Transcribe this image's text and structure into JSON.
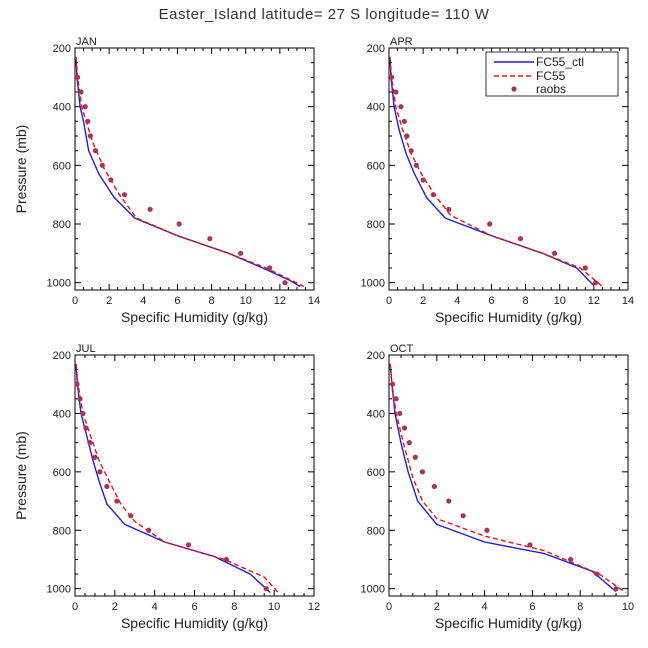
{
  "figure": {
    "title": "Easter_Island  latitude= 27 S longitude= 110 W"
  },
  "legend": {
    "ctl_label": "FC55_ctl",
    "fc55_label": "FC55",
    "raobs_label": "raobs"
  },
  "colors": {
    "ctl": "#1f1fd6",
    "fc55": "#e01818",
    "raobs": "#b0305a"
  },
  "chart_data": [
    {
      "type": "line",
      "panel": "JAN",
      "xlabel": "Specific Humidity (g/kg)",
      "ylabel": "Pressure (mb)",
      "xlim": [
        0,
        14
      ],
      "ylim": [
        1025,
        200
      ],
      "xticks": [
        0,
        2,
        4,
        6,
        8,
        10,
        12,
        14
      ],
      "yticks": [
        200,
        400,
        600,
        800,
        1000
      ],
      "series": [
        {
          "name": "FC55_ctl",
          "style": "solid",
          "x": [
            0.05,
            0.12,
            0.3,
            0.5,
            0.8,
            1.4,
            2.3,
            3.5,
            6.0,
            9.0,
            11.0,
            12.5,
            13.2
          ],
          "y": [
            230,
            300,
            400,
            450,
            550,
            630,
            710,
            780,
            840,
            900,
            950,
            990,
            1013
          ]
        },
        {
          "name": "FC55",
          "style": "dashed",
          "x": [
            0.05,
            0.15,
            0.4,
            0.7,
            1.1,
            1.7,
            2.6,
            3.6,
            6.0,
            9.0,
            11.2,
            12.6,
            13.4
          ],
          "y": [
            230,
            300,
            400,
            460,
            530,
            610,
            700,
            780,
            840,
            900,
            950,
            990,
            1013
          ]
        },
        {
          "name": "raobs",
          "style": "markers",
          "x": [
            0.15,
            0.35,
            0.6,
            0.75,
            0.9,
            1.2,
            1.6,
            2.1,
            2.9,
            4.4,
            6.1,
            7.9,
            9.7,
            11.4,
            12.3
          ],
          "y": [
            300,
            350,
            400,
            450,
            500,
            550,
            600,
            650,
            700,
            750,
            800,
            850,
            900,
            950,
            1000
          ]
        }
      ]
    },
    {
      "type": "line",
      "panel": "APR",
      "xlabel": "Specific Humidity (g/kg)",
      "ylabel": "",
      "xlim": [
        0,
        14
      ],
      "ylim": [
        1025,
        200
      ],
      "xticks": [
        0,
        2,
        4,
        6,
        8,
        10,
        12,
        14
      ],
      "yticks": [
        200,
        400,
        600,
        800,
        1000
      ],
      "series": [
        {
          "name": "FC55_ctl",
          "style": "solid",
          "x": [
            0.05,
            0.12,
            0.3,
            0.6,
            1.0,
            1.5,
            2.2,
            3.3,
            6.0,
            9.0,
            11.0,
            12.0
          ],
          "y": [
            230,
            300,
            400,
            480,
            560,
            630,
            710,
            780,
            840,
            900,
            950,
            1010
          ]
        },
        {
          "name": "FC55",
          "style": "dashed",
          "x": [
            0.05,
            0.15,
            0.4,
            0.8,
            1.3,
            2.0,
            2.8,
            3.6,
            6.0,
            9.0,
            11.2,
            12.5
          ],
          "y": [
            230,
            300,
            400,
            480,
            560,
            640,
            710,
            770,
            840,
            900,
            950,
            1013
          ]
        },
        {
          "name": "raobs",
          "style": "markers",
          "x": [
            0.15,
            0.4,
            0.7,
            0.9,
            1.05,
            1.3,
            1.6,
            2.0,
            2.6,
            3.5,
            5.9,
            7.7,
            9.7,
            11.5,
            12.1
          ],
          "y": [
            300,
            350,
            400,
            450,
            500,
            550,
            600,
            650,
            700,
            750,
            800,
            850,
            900,
            950,
            1000
          ]
        }
      ]
    },
    {
      "type": "line",
      "panel": "JUL",
      "xlabel": "Specific Humidity (g/kg)",
      "ylabel": "Pressure (mb)",
      "xlim": [
        0,
        12
      ],
      "ylim": [
        1025,
        200
      ],
      "xticks": [
        0,
        2,
        4,
        6,
        8,
        10,
        12
      ],
      "yticks": [
        200,
        400,
        600,
        800,
        1000
      ],
      "series": [
        {
          "name": "FC55_ctl",
          "style": "solid",
          "x": [
            0.05,
            0.12,
            0.3,
            0.6,
            0.9,
            1.2,
            1.6,
            2.5,
            4.5,
            7.0,
            8.8,
            9.8
          ],
          "y": [
            230,
            300,
            400,
            480,
            560,
            630,
            710,
            780,
            840,
            890,
            950,
            1013
          ]
        },
        {
          "name": "FC55",
          "style": "dashed",
          "x": [
            0.05,
            0.15,
            0.4,
            0.8,
            1.2,
            1.7,
            2.3,
            3.0,
            4.5,
            7.5,
            9.5,
            10.2
          ],
          "y": [
            230,
            300,
            400,
            480,
            560,
            630,
            710,
            770,
            840,
            900,
            960,
            1013
          ]
        },
        {
          "name": "raobs",
          "style": "markers",
          "x": [
            0.1,
            0.25,
            0.4,
            0.55,
            0.75,
            1.0,
            1.25,
            1.6,
            2.1,
            2.8,
            3.7,
            5.7,
            7.6,
            9.6
          ],
          "y": [
            300,
            350,
            400,
            450,
            500,
            550,
            600,
            650,
            700,
            750,
            800,
            850,
            900,
            1000
          ]
        }
      ]
    },
    {
      "type": "line",
      "panel": "OCT",
      "xlabel": "Specific Humidity (g/kg)",
      "ylabel": "",
      "xlim": [
        0,
        10
      ],
      "ylim": [
        1025,
        200
      ],
      "xticks": [
        0,
        2,
        4,
        6,
        8,
        10
      ],
      "yticks": [
        200,
        400,
        600,
        800,
        1000
      ],
      "series": [
        {
          "name": "FC55_ctl",
          "style": "solid",
          "x": [
            0.05,
            0.12,
            0.25,
            0.5,
            0.8,
            1.2,
            2.0,
            4.0,
            6.5,
            8.5,
            9.5
          ],
          "y": [
            230,
            300,
            400,
            500,
            600,
            700,
            780,
            840,
            880,
            940,
            1010
          ]
        },
        {
          "name": "FC55",
          "style": "dashed",
          "x": [
            0.05,
            0.12,
            0.3,
            0.6,
            1.0,
            1.4,
            2.0,
            4.0,
            6.5,
            8.8,
            9.9
          ],
          "y": [
            230,
            300,
            400,
            500,
            620,
            700,
            760,
            820,
            870,
            950,
            1013
          ]
        },
        {
          "name": "raobs",
          "style": "markers",
          "x": [
            0.15,
            0.3,
            0.45,
            0.65,
            0.85,
            1.1,
            1.4,
            1.9,
            2.5,
            3.1,
            4.1,
            5.9,
            7.6,
            8.7,
            9.5
          ],
          "y": [
            300,
            350,
            400,
            450,
            500,
            550,
            600,
            650,
            700,
            750,
            800,
            850,
            900,
            950,
            1000
          ]
        }
      ]
    }
  ]
}
